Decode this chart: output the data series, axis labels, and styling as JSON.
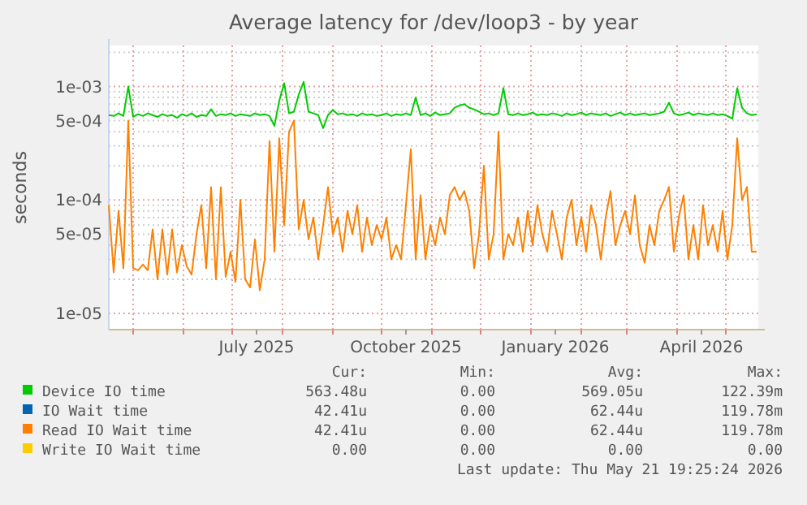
{
  "chart_data": {
    "type": "line",
    "title": "Average latency for /dev/loop3 - by year",
    "ylabel": "seconds",
    "log": "y",
    "grid": true,
    "legend": "bottom",
    "xlim": [
      "2025-04-16",
      "2026-05-21"
    ],
    "xticks": [
      {
        "value": "2025-05-01",
        "label": null
      },
      {
        "value": "2025-06-01",
        "label": null
      },
      {
        "value": "2025-07-01",
        "label": null
      },
      {
        "value": "2025-07-16",
        "label": "July 2025"
      },
      {
        "value": "2025-08-01",
        "label": null
      },
      {
        "value": "2025-09-01",
        "label": null
      },
      {
        "value": "2025-10-01",
        "label": null
      },
      {
        "value": "2025-10-16",
        "label": "October 2025"
      },
      {
        "value": "2025-11-01",
        "label": null
      },
      {
        "value": "2025-12-01",
        "label": null
      },
      {
        "value": "2026-01-01",
        "label": null
      },
      {
        "value": "2026-01-16",
        "label": "January 2026"
      },
      {
        "value": "2026-02-01",
        "label": null
      },
      {
        "value": "2026-03-01",
        "label": null
      },
      {
        "value": "2026-04-01",
        "label": null
      },
      {
        "value": "2026-04-16",
        "label": "April 2026"
      },
      {
        "value": "2026-05-01",
        "label": null
      }
    ],
    "ylim": [
      7.2e-06,
      0.0023
    ],
    "yticks": [
      {
        "value": 1e-05,
        "label": "1e-05"
      },
      {
        "value": 2e-05,
        "label": null
      },
      {
        "value": 3e-05,
        "label": null
      },
      {
        "value": 4e-05,
        "label": null
      },
      {
        "value": 5e-05,
        "label": "5e-05"
      },
      {
        "value": 6e-05,
        "label": null
      },
      {
        "value": 7e-05,
        "label": null
      },
      {
        "value": 8e-05,
        "label": null
      },
      {
        "value": 9e-05,
        "label": null
      },
      {
        "value": 0.0001,
        "label": "1e-04"
      },
      {
        "value": 0.0002,
        "label": null
      },
      {
        "value": 0.0003,
        "label": null
      },
      {
        "value": 0.0004,
        "label": null
      },
      {
        "value": 0.0005,
        "label": "5e-04"
      },
      {
        "value": 0.0006,
        "label": null
      },
      {
        "value": 0.0007,
        "label": null
      },
      {
        "value": 0.0008,
        "label": null
      },
      {
        "value": 0.0009,
        "label": null
      },
      {
        "value": 0.001,
        "label": "1e-03"
      },
      {
        "value": 0.002,
        "label": null
      }
    ],
    "x": [
      "2025-04-16",
      "2025-04-19",
      "2025-04-22",
      "2025-04-25",
      "2025-04-28",
      "2025-05-01",
      "2025-05-04",
      "2025-05-07",
      "2025-05-10",
      "2025-05-13",
      "2025-05-16",
      "2025-05-19",
      "2025-05-22",
      "2025-05-25",
      "2025-05-28",
      "2025-05-31",
      "2025-06-03",
      "2025-06-06",
      "2025-06-09",
      "2025-06-12",
      "2025-06-15",
      "2025-06-18",
      "2025-06-21",
      "2025-06-24",
      "2025-06-27",
      "2025-06-30",
      "2025-07-03",
      "2025-07-06",
      "2025-07-09",
      "2025-07-12",
      "2025-07-15",
      "2025-07-18",
      "2025-07-21",
      "2025-07-24",
      "2025-07-27",
      "2025-07-30",
      "2025-08-02",
      "2025-08-05",
      "2025-08-08",
      "2025-08-11",
      "2025-08-14",
      "2025-08-17",
      "2025-08-20",
      "2025-08-23",
      "2025-08-26",
      "2025-08-29",
      "2025-09-01",
      "2025-09-04",
      "2025-09-07",
      "2025-09-10",
      "2025-09-13",
      "2025-09-16",
      "2025-09-19",
      "2025-09-22",
      "2025-09-25",
      "2025-09-28",
      "2025-10-01",
      "2025-10-04",
      "2025-10-07",
      "2025-10-10",
      "2025-10-13",
      "2025-10-16",
      "2025-10-19",
      "2025-10-22",
      "2025-10-25",
      "2025-10-28",
      "2025-10-31",
      "2025-11-03",
      "2025-11-06",
      "2025-11-09",
      "2025-11-12",
      "2025-11-15",
      "2025-11-18",
      "2025-11-21",
      "2025-11-24",
      "2025-11-27",
      "2025-11-30",
      "2025-12-03",
      "2025-12-06",
      "2025-12-09",
      "2025-12-12",
      "2025-12-15",
      "2025-12-18",
      "2025-12-21",
      "2025-12-24",
      "2025-12-27",
      "2025-12-30",
      "2026-01-02",
      "2026-01-05",
      "2026-01-08",
      "2026-01-11",
      "2026-01-14",
      "2026-01-17",
      "2026-01-20",
      "2026-01-23",
      "2026-01-26",
      "2026-01-29",
      "2026-02-01",
      "2026-02-04",
      "2026-02-07",
      "2026-02-10",
      "2026-02-13",
      "2026-02-16",
      "2026-02-19",
      "2026-02-22",
      "2026-02-25",
      "2026-02-28",
      "2026-03-03",
      "2026-03-06",
      "2026-03-09",
      "2026-03-12",
      "2026-03-15",
      "2026-03-18",
      "2026-03-21",
      "2026-03-24",
      "2026-03-27",
      "2026-03-30",
      "2026-04-02",
      "2026-04-05",
      "2026-04-08",
      "2026-04-11",
      "2026-04-14",
      "2026-04-17",
      "2026-04-20",
      "2026-04-23",
      "2026-04-26",
      "2026-04-29",
      "2026-05-02",
      "2026-05-05",
      "2026-05-08",
      "2026-05-11",
      "2026-05-14",
      "2026-05-17",
      "2026-05-20"
    ],
    "series": [
      {
        "name": "Device IO time",
        "color": "#00cc00",
        "values": [
          0.00056,
          0.00055,
          0.00058,
          0.00055,
          0.001,
          0.00054,
          0.00057,
          0.00055,
          0.00058,
          0.00056,
          0.00054,
          0.00057,
          0.00055,
          0.00056,
          0.00053,
          0.00057,
          0.00055,
          0.00058,
          0.00054,
          0.00056,
          0.00055,
          0.00063,
          0.00055,
          0.00057,
          0.00056,
          0.00058,
          0.00055,
          0.00057,
          0.00056,
          0.00055,
          0.00058,
          0.00056,
          0.00057,
          0.00055,
          0.00045,
          0.00075,
          0.00107,
          0.00058,
          0.0006,
          0.00085,
          0.0011,
          0.0006,
          0.00058,
          0.00056,
          0.00043,
          0.00056,
          0.00062,
          0.00057,
          0.00058,
          0.00056,
          0.00057,
          0.00055,
          0.00058,
          0.00056,
          0.00057,
          0.00055,
          0.00056,
          0.00058,
          0.00055,
          0.00057,
          0.00056,
          0.00058,
          0.00056,
          0.0008,
          0.00056,
          0.00058,
          0.00055,
          0.00059,
          0.00056,
          0.00057,
          0.00058,
          0.00065,
          0.00068,
          0.0007,
          0.00065,
          0.00063,
          0.0006,
          0.00057,
          0.00058,
          0.00056,
          0.00058,
          0.00097,
          0.00057,
          0.00056,
          0.00058,
          0.00056,
          0.00057,
          0.00059,
          0.00056,
          0.00057,
          0.00056,
          0.00058,
          0.00057,
          0.00055,
          0.00058,
          0.00056,
          0.00057,
          0.00059,
          0.00056,
          0.00058,
          0.00057,
          0.00056,
          0.00058,
          0.00055,
          0.00057,
          0.00059,
          0.00056,
          0.00058,
          0.00056,
          0.00057,
          0.00058,
          0.00056,
          0.00057,
          0.00058,
          0.0006,
          0.00072,
          0.00058,
          0.00056,
          0.00057,
          0.00059,
          0.00056,
          0.00058,
          0.00057,
          0.00056,
          0.00058,
          0.00056,
          0.00057,
          0.00055,
          0.00052,
          0.00097,
          0.00065,
          0.00058,
          0.00056,
          0.00057
        ]
      },
      {
        "name": "IO Wait time",
        "color": "#0066b3",
        "values": [
          null,
          null,
          null,
          null,
          null,
          null,
          null,
          null,
          null,
          null,
          null,
          null,
          null,
          null,
          null,
          null,
          null,
          null,
          null,
          null,
          null,
          null,
          null,
          null,
          null,
          null,
          null,
          null,
          null,
          null,
          null,
          null,
          null,
          null,
          null,
          null,
          null,
          null,
          null,
          null,
          null,
          null,
          null,
          null,
          null,
          null,
          null,
          null,
          null,
          null,
          null,
          null,
          null,
          null,
          null,
          null,
          null,
          null,
          null,
          null,
          null,
          null,
          null,
          null,
          null,
          null,
          null,
          null,
          null,
          null,
          null,
          null,
          null,
          null,
          null,
          null,
          null,
          null,
          null,
          null,
          null,
          null,
          null,
          null,
          null,
          null,
          null,
          null,
          null,
          null,
          null,
          null,
          null,
          null,
          null,
          null,
          null,
          null,
          null,
          null,
          null,
          null,
          null,
          null,
          null,
          null,
          null,
          null,
          null,
          null,
          null,
          null,
          null,
          null,
          null,
          null,
          null,
          null,
          null,
          null,
          null,
          null,
          null,
          null,
          null,
          null,
          null,
          null,
          null,
          null,
          null,
          null,
          null,
          null
        ]
      },
      {
        "name": "Read IO Wait time",
        "color": "#ff8000",
        "values": [
          9e-05,
          2.3e-05,
          8e-05,
          2.5e-05,
          0.0005,
          2.5e-05,
          2.4e-05,
          2.7e-05,
          2.4e-05,
          5.5e-05,
          2e-05,
          5.5e-05,
          2.2e-05,
          5.5e-05,
          2.3e-05,
          4e-05,
          2.6e-05,
          2.2e-05,
          5e-05,
          9e-05,
          2.5e-05,
          0.00013,
          2e-05,
          0.00013,
          2.1e-05,
          3.5e-05,
          1.9e-05,
          0.0001,
          2e-05,
          1.7e-05,
          4.5e-05,
          1.6e-05,
          3e-05,
          0.00033,
          3.5e-05,
          0.00035,
          6e-05,
          0.0004,
          0.0005,
          5.5e-05,
          0.0001,
          4.5e-05,
          7e-05,
          3e-05,
          6e-05,
          0.00013,
          5e-05,
          7e-05,
          3.5e-05,
          8e-05,
          5e-05,
          9e-05,
          3.5e-05,
          7e-05,
          4e-05,
          6e-05,
          4.5e-05,
          7e-05,
          3e-05,
          4e-05,
          3e-05,
          9e-05,
          0.00028,
          3e-05,
          0.00011,
          3e-05,
          6e-05,
          4e-05,
          7e-05,
          5e-05,
          0.00011,
          0.00013,
          0.0001,
          0.00012,
          8e-05,
          2.5e-05,
          5e-05,
          0.0002,
          3e-05,
          5e-05,
          0.0004,
          3e-05,
          5e-05,
          4e-05,
          7e-05,
          3.5e-05,
          8e-05,
          4e-05,
          9e-05,
          5e-05,
          3.5e-05,
          8e-05,
          5e-05,
          3e-05,
          7e-05,
          0.0001,
          4e-05,
          7e-05,
          3.5e-05,
          9e-05,
          6e-05,
          3e-05,
          7e-05,
          0.00012,
          4e-05,
          6e-05,
          8e-05,
          5e-05,
          0.00011,
          4e-05,
          2.8e-05,
          6e-05,
          4e-05,
          8e-05,
          0.0001,
          0.00013,
          3.5e-05,
          7e-05,
          0.00011,
          3e-05,
          6e-05,
          3e-05,
          9e-05,
          4e-05,
          6e-05,
          3.5e-05,
          8e-05,
          3e-05,
          6e-05,
          0.00035,
          0.0001,
          0.00013,
          3.5e-05,
          3.5e-05
        ]
      },
      {
        "name": "Write IO Wait time",
        "color": "#ffcc00",
        "values": [
          null,
          null,
          null,
          null,
          null,
          null,
          null,
          null,
          null,
          null,
          null,
          null,
          null,
          null,
          null,
          null,
          null,
          null,
          null,
          null,
          null,
          null,
          null,
          null,
          null,
          null,
          null,
          null,
          null,
          null,
          null,
          null,
          null,
          null,
          null,
          null,
          null,
          null,
          null,
          null,
          null,
          null,
          null,
          null,
          null,
          null,
          null,
          null,
          null,
          null,
          null,
          null,
          null,
          null,
          null,
          null,
          null,
          null,
          null,
          null,
          null,
          null,
          null,
          null,
          null,
          null,
          null,
          null,
          null,
          null,
          null,
          null,
          null,
          null,
          null,
          null,
          null,
          null,
          null,
          null,
          null,
          null,
          null,
          null,
          null,
          null,
          null,
          null,
          null,
          null,
          null,
          null,
          null,
          null,
          null,
          null,
          null,
          null,
          null,
          null,
          null,
          null,
          null,
          null,
          null,
          null,
          null,
          null,
          null,
          null,
          null,
          null,
          null,
          null,
          null,
          null,
          null,
          null,
          null,
          null,
          null,
          null,
          null,
          null,
          null,
          null,
          null,
          null,
          null,
          null,
          null,
          null,
          null,
          null
        ]
      }
    ],
    "annotations": [
      "Cur:",
      "Min:",
      "Avg:",
      "Max:",
      "563.48u",
      "0.00",
      "569.05u",
      "122.39m",
      "42.41u",
      "0.00",
      "62.44u",
      "119.78m",
      "42.41u",
      "0.00",
      "62.44u",
      "119.78m",
      "0.00",
      "0.00",
      "0.00",
      "0.00",
      "Last update: Thu May 21 19:25:24 2026"
    ]
  }
}
